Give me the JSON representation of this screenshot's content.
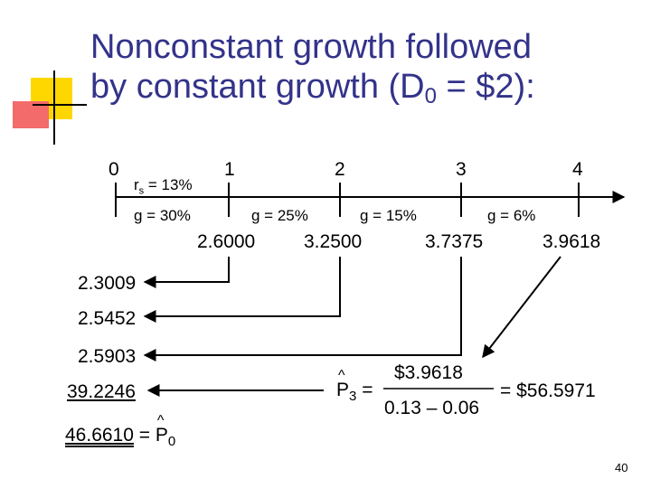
{
  "title": {
    "line1": "Nonconstant growth followed",
    "line2_pre": "by constant growth (D",
    "line2_sub": "0",
    "line2_post": " = $2):"
  },
  "timeline": {
    "periods": [
      "0",
      "1",
      "2",
      "3",
      "4"
    ],
    "rs_label": "r",
    "rs_sub": "s",
    "rs_value": " = 13%",
    "growth": [
      "g = 30%",
      "g = 25%",
      "g = 15%",
      "g = 6%"
    ],
    "dividends": [
      "2.6000",
      "3.2500",
      "3.7375",
      "3.9618"
    ]
  },
  "present_values": [
    "2.3009",
    "2.5452",
    "2.5903",
    "39.2246"
  ],
  "total": {
    "value": "46.6610",
    "equals": "=",
    "p_label": "P",
    "p_sub": "0",
    "hat": "^"
  },
  "terminal": {
    "p_label": "P",
    "p_sub": "3",
    "hat": "^",
    "equals": "=",
    "numerator": "$3.9618",
    "denominator": "0.13 – 0.06",
    "result": "= $56.5971"
  },
  "page_number": "40",
  "colors": {
    "title": "#33338a",
    "accent_yellow": "#ffd700",
    "accent_red": "#e8322a"
  }
}
